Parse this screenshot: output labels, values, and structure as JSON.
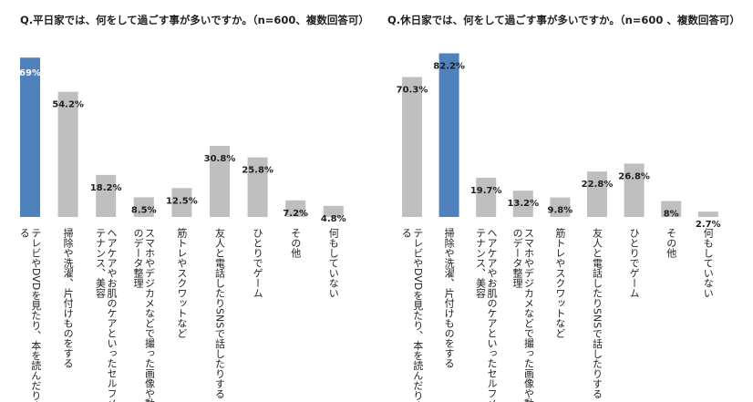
{
  "chart_data": [
    {
      "type": "bar",
      "title": "Q.平日家では、何をして過ごす事が多いですか。（n=600、複数回答可）",
      "categories": [
        "テレビやDVDを見たり、本を読んだりする",
        "掃除や洗濯、片付けものをする",
        "ヘアケアやお肌のケアといったセルフメンテナンス、美容",
        "スマホやデジカメなどで撮った画像や動画のデータ整理",
        "筋トレやスクワットなど",
        "友人と電話したりSNSで話したりする",
        "ひとりでゲーム",
        "その他",
        "何もしていない"
      ],
      "values": [
        69,
        54.2,
        18.2,
        8.5,
        12.5,
        30.8,
        25.8,
        7.2,
        4.8
      ],
      "value_labels": [
        "69%",
        "54.2%",
        "18.2%",
        "8.5%",
        "12.5%",
        "30.8%",
        "25.8%",
        "7.2%",
        "4.8%"
      ],
      "highlight_index": 0,
      "ylim": [
        0,
        75
      ],
      "xlabel": "",
      "ylabel": "",
      "grid": false,
      "colors": {
        "bar": "#bfbfbf",
        "highlight": "#4f81bd",
        "label": "#1f1f1f",
        "highlight_label": "#ffffff"
      }
    },
    {
      "type": "bar",
      "title": "Q.休日家では、何をして過ごす事が多いですか。（n=600 、複数回答可）",
      "categories": [
        "テレビやDVDを見たり、本を読んだりする",
        "掃除や洗濯、片付けものをする",
        "ヘアケアやお肌のケアといったセルフメンテナンス、美容",
        "スマホやデジカメなどで撮った画像や動画のデータ整理",
        "筋トレやスクワットなど",
        "友人と電話したりSNSで話したりする",
        "ひとりでゲーム",
        "その他",
        "何もしていない"
      ],
      "values": [
        70.3,
        82.2,
        19.7,
        13.2,
        9.8,
        22.8,
        26.8,
        8,
        2.7
      ],
      "value_labels": [
        "70.3%",
        "82.2%",
        "19.7%",
        "13.2%",
        "9.8%",
        "22.8%",
        "26.8%",
        "8%",
        "2.7%"
      ],
      "highlight_index": 1,
      "ylim": [
        0,
        87
      ],
      "xlabel": "",
      "ylabel": "",
      "grid": false,
      "colors": {
        "bar": "#bfbfbf",
        "highlight": "#4f81bd",
        "label": "#1f1f1f",
        "highlight_label": "#1f1f1f"
      }
    }
  ]
}
